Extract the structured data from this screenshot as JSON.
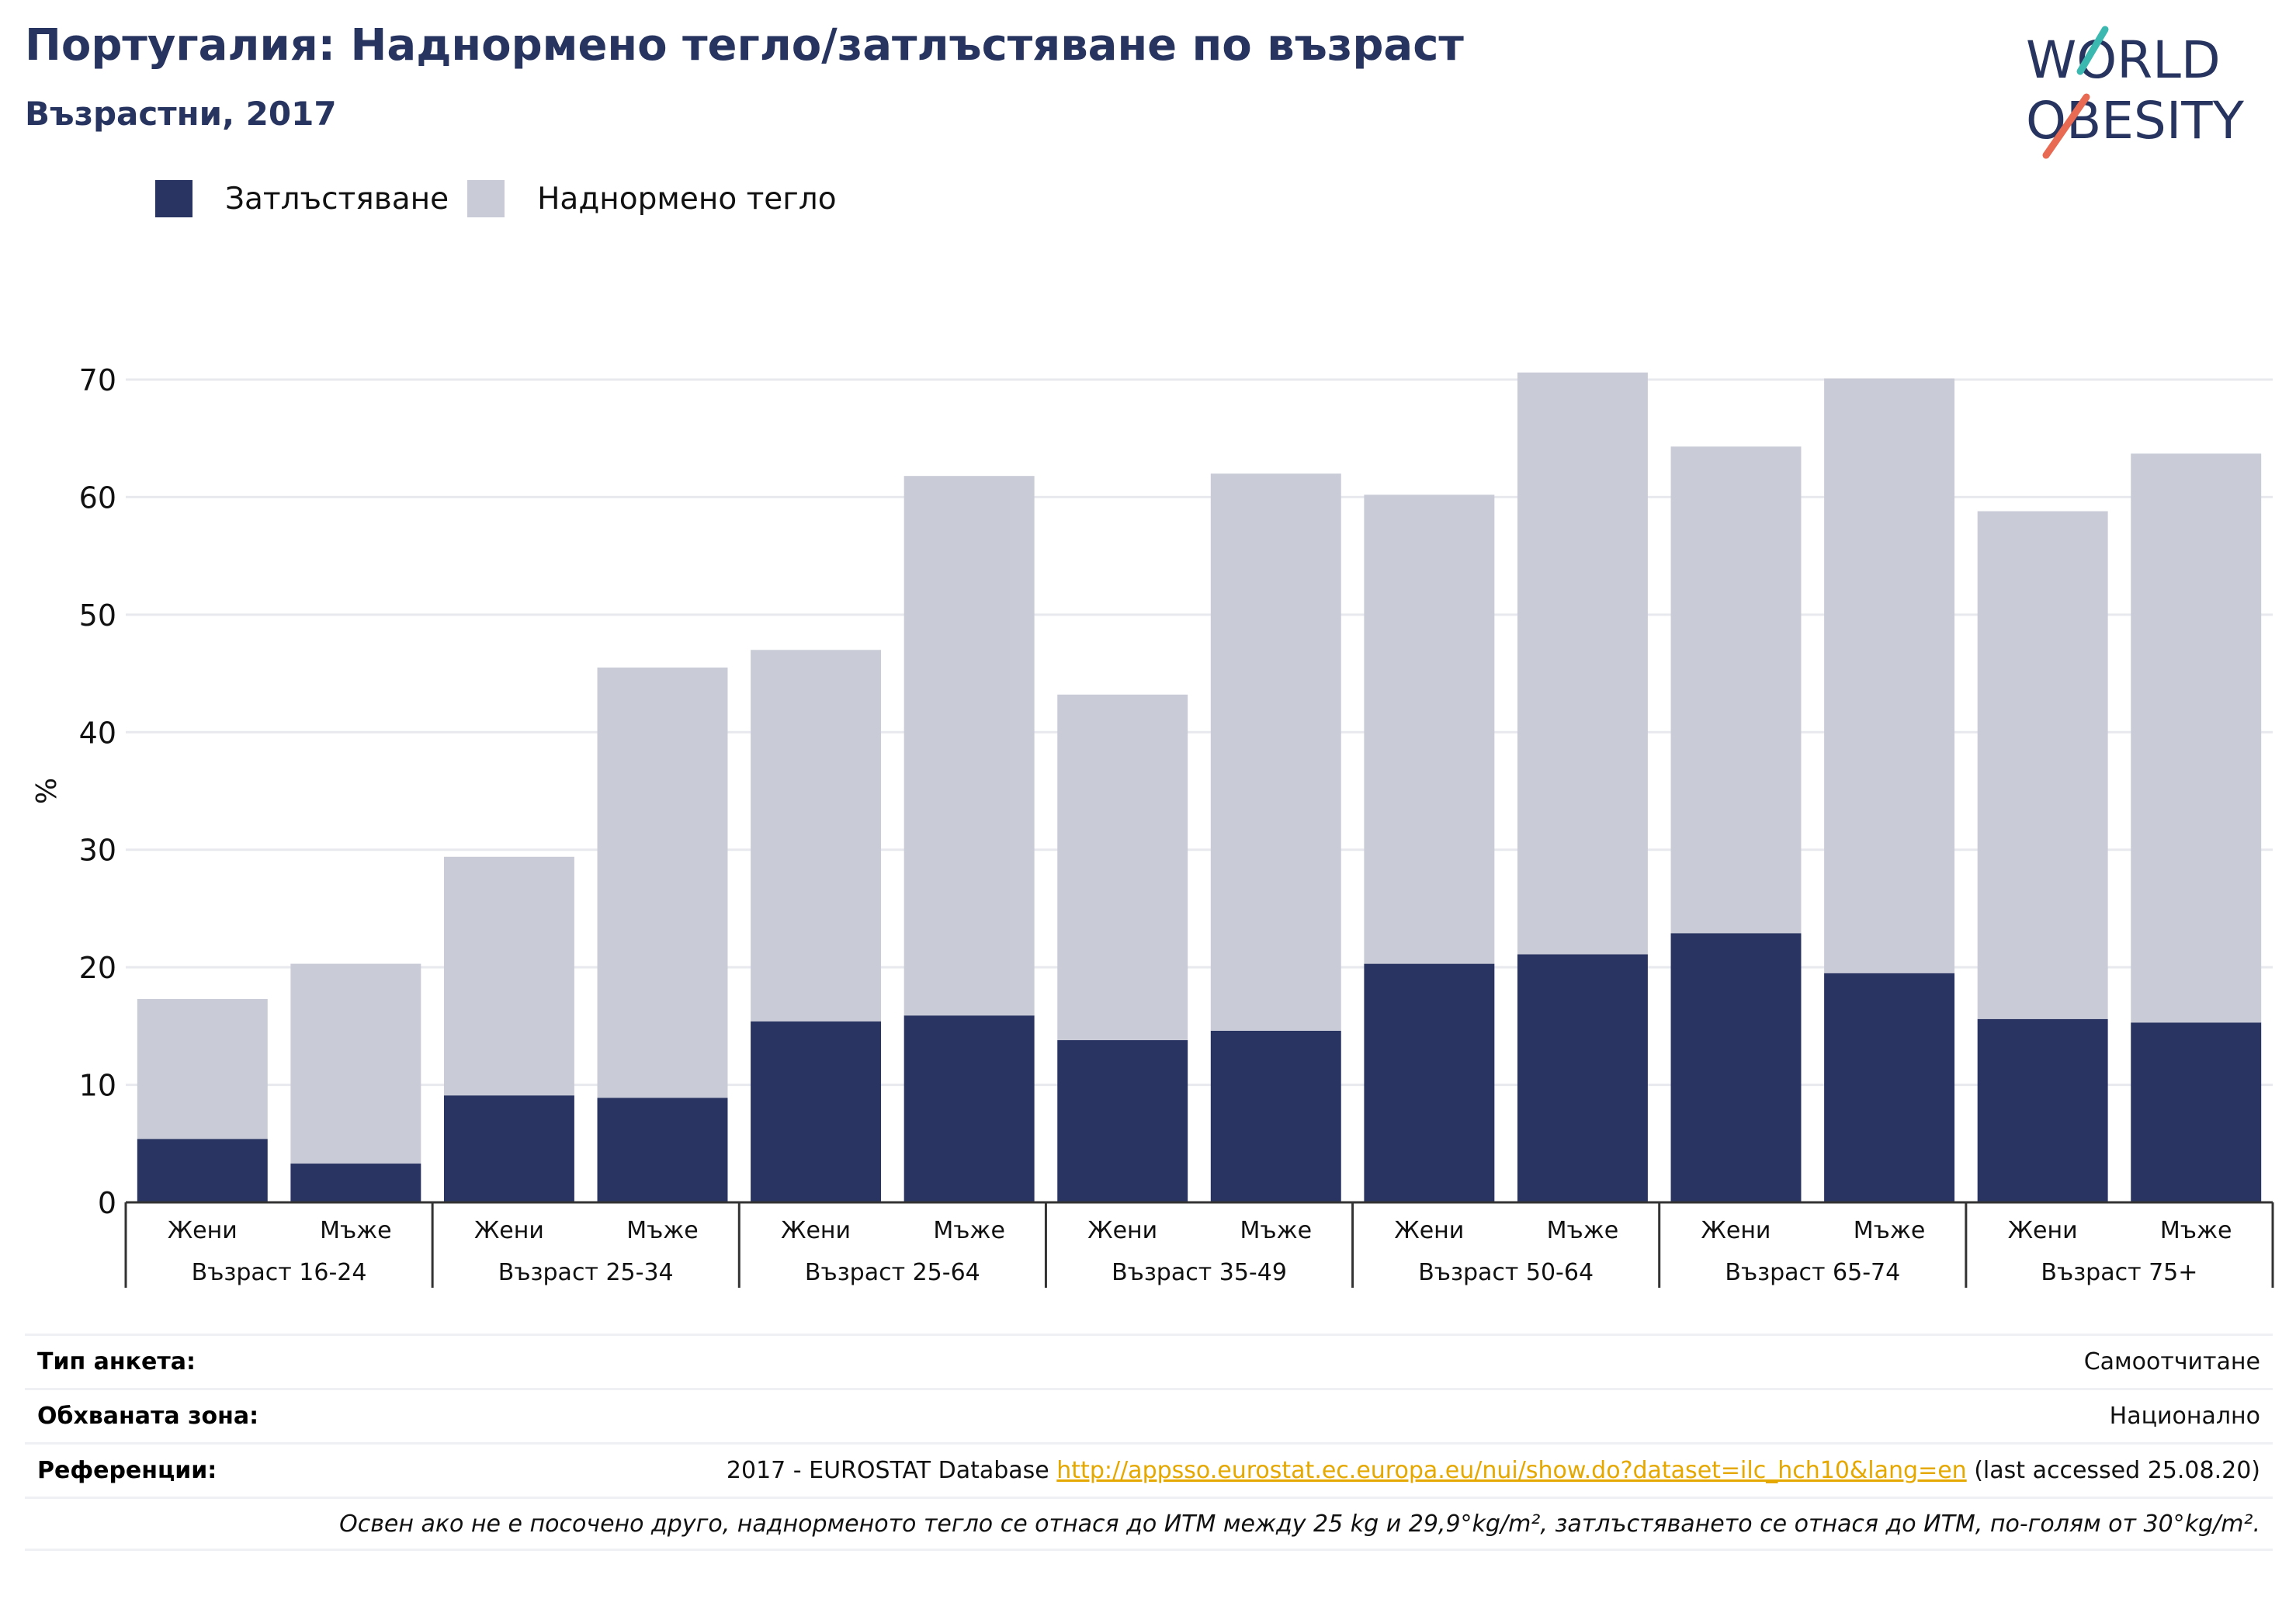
{
  "header": {
    "title": "Португалия: Наднормено тегло/затлъстяване по възраст",
    "subtitle": "Възрастни, 2017"
  },
  "logo": {
    "line1": "WORLD",
    "line2": "OBESITY"
  },
  "colors": {
    "obesity": "#293462",
    "overweight": "#c9cbd7",
    "grid": "#e8e9ee",
    "axis": "#333333",
    "text": "#27345f"
  },
  "chart_data": {
    "type": "bar",
    "stacked": true,
    "ylabel": "%",
    "ylim": [
      0,
      70
    ],
    "yticks": [
      0,
      10,
      20,
      30,
      40,
      50,
      60,
      70
    ],
    "grid": true,
    "legend_position": "top-left",
    "legend": [
      "Затлъстяване",
      "Наднормено тегло"
    ],
    "groups": [
      "Възраст 16-24",
      "Възраст 25-34",
      "Възраст 25-64",
      "Възраст 35-49",
      "Възраст 50-64",
      "Възраст 65-74",
      "Възраст 75+"
    ],
    "sexes": [
      "Жени",
      "Мъже"
    ],
    "series": [
      {
        "name": "Затлъстяване",
        "values": [
          5.4,
          3.3,
          9.1,
          8.9,
          15.4,
          15.9,
          13.8,
          14.6,
          20.3,
          21.1,
          22.9,
          19.5,
          15.6,
          15.3
        ]
      },
      {
        "name": "Наднормено тегло",
        "values": [
          11.9,
          17.0,
          20.3,
          36.6,
          31.6,
          45.9,
          29.4,
          47.4,
          39.9,
          49.5,
          41.4,
          50.6,
          43.2,
          48.4
        ]
      }
    ],
    "totals": [
      17.3,
      20.3,
      29.4,
      45.5,
      47.0,
      61.8,
      43.2,
      62.0,
      60.2,
      70.6,
      64.3,
      70.1,
      58.8,
      63.7
    ]
  },
  "footer": {
    "survey_label": "Тип анкета:",
    "survey_value": "Самоотчитане",
    "area_label": "Обхваната зона:",
    "area_value": "Национално",
    "ref_label": "Референции:",
    "ref_prefix": "2017 - EUROSTAT Database ",
    "ref_link": "http://appsso.eurostat.ec.europa.eu/nui/show.do?dataset=ilc_hch10&lang=en",
    "ref_suffix": " (last accessed 25.08.20)",
    "note": "Освен ако не е посочено друго, наднорменото тегло се отнася до ИТМ между 25 kg и 29,9°kg/m², затлъстяването се отнася до ИТМ, по-голям от 30°kg/m²."
  }
}
